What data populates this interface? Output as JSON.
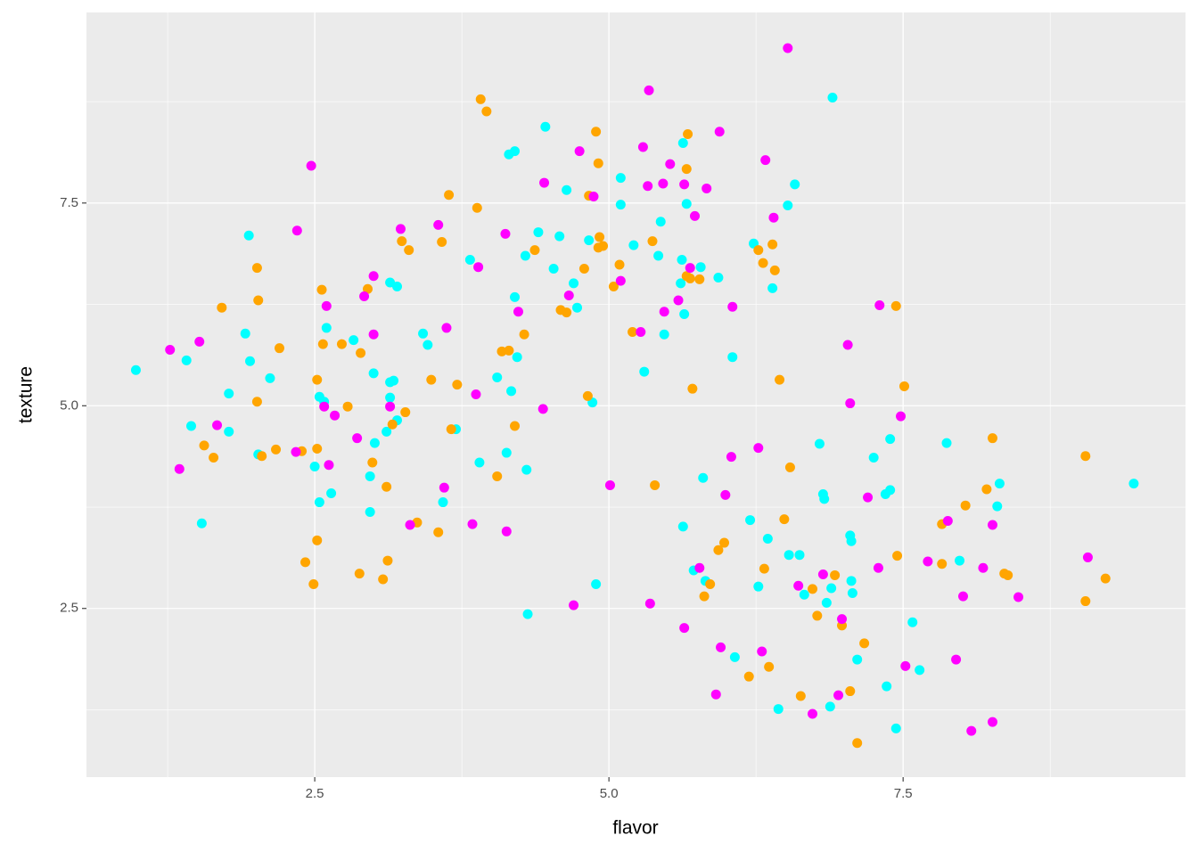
{
  "chart_data": {
    "type": "scatter",
    "x_label": "flavor",
    "y_label": "texture",
    "xlim": [
      0.56,
      9.9
    ],
    "ylim": [
      0.42,
      9.85
    ],
    "xticks": [
      2.5,
      {
        "value": 5,
        "label": "5.0"
      },
      7.5
    ],
    "yticks": [
      2.5,
      {
        "value": 5,
        "label": "5.0"
      },
      7.5
    ],
    "x_minor_grid": [
      1.25,
      3.75,
      6.25,
      8.75
    ],
    "y_minor_grid": [
      1.25,
      3.75,
      6.25,
      8.75
    ],
    "grid": true,
    "series": [
      {
        "color": "#00ffff",
        "x": [
          0.98,
          1.41,
          1.45,
          1.54,
          1.77,
          1.77,
          1.94,
          1.91,
          1.95,
          2.02,
          2.12,
          2.5,
          2.54,
          2.54,
          2.58,
          2.6,
          2.64,
          2.83,
          2.97,
          2.97,
          3.0,
          3.01,
          3.14,
          3.14,
          3.14,
          3.11,
          3.17,
          3.2,
          3.2,
          3.42,
          3.46,
          3.59,
          3.7,
          3.82,
          3.9,
          4.05,
          4.13,
          4.17,
          4.15,
          4.2,
          4.22,
          4.2,
          4.29,
          4.3,
          4.31,
          4.4,
          4.46,
          4.53,
          4.58,
          4.64,
          4.7,
          4.73,
          4.83,
          4.86,
          4.89,
          5.1,
          5.1,
          5.21,
          5.3,
          5.42,
          5.44,
          5.47,
          5.61,
          5.62,
          5.63,
          5.64,
          5.66,
          5.72,
          5.78,
          5.8,
          5.82,
          5.63,
          5.93,
          6.05,
          6.07,
          6.2,
          6.23,
          6.27,
          6.35,
          6.39,
          6.44,
          6.53,
          6.52,
          6.58,
          6.62,
          6.66,
          6.79,
          6.83,
          6.82,
          6.85,
          6.88,
          6.89,
          6.9,
          7.05,
          7.06,
          7.06,
          7.07,
          7.11,
          7.25,
          7.35,
          7.36,
          7.39,
          7.39,
          7.44,
          7.58,
          7.64,
          7.87,
          7.98,
          8.3,
          8.32,
          9.46
        ],
        "y": [
          5.44,
          5.56,
          4.75,
          3.55,
          5.15,
          4.68,
          7.1,
          5.89,
          5.55,
          4.4,
          5.34,
          4.25,
          5.11,
          3.81,
          5.05,
          5.96,
          3.92,
          5.81,
          4.13,
          3.69,
          5.4,
          4.54,
          6.52,
          5.1,
          5.29,
          4.68,
          5.31,
          6.47,
          4.82,
          5.89,
          5.75,
          3.81,
          4.71,
          6.8,
          4.3,
          5.35,
          4.42,
          5.18,
          8.1,
          8.14,
          5.6,
          6.34,
          6.85,
          4.21,
          2.43,
          7.14,
          8.44,
          6.69,
          7.09,
          7.66,
          6.51,
          6.21,
          7.04,
          5.04,
          2.8,
          7.81,
          7.48,
          6.98,
          5.42,
          6.85,
          7.27,
          5.88,
          6.51,
          6.8,
          8.24,
          6.13,
          7.49,
          2.97,
          6.71,
          4.11,
          2.84,
          3.51,
          6.58,
          5.6,
          1.9,
          3.59,
          7.0,
          2.77,
          3.36,
          6.45,
          1.26,
          3.16,
          7.47,
          7.73,
          3.16,
          2.67,
          4.53,
          3.85,
          3.91,
          2.57,
          1.29,
          2.75,
          8.8,
          3.4,
          3.33,
          2.84,
          2.69,
          1.87,
          4.36,
          3.91,
          1.54,
          3.96,
          4.59,
          1.02,
          2.33,
          1.74,
          4.54,
          3.09,
          3.76,
          4.04,
          4.04
        ]
      },
      {
        "color": "#ffa500",
        "x": [
          1.56,
          1.64,
          1.71,
          2.01,
          2.02,
          2.01,
          2.05,
          2.17,
          2.2,
          2.39,
          2.42,
          2.52,
          2.52,
          2.49,
          2.52,
          2.56,
          2.57,
          2.73,
          2.78,
          2.88,
          2.89,
          2.95,
          2.99,
          3.08,
          3.11,
          3.12,
          3.16,
          3.24,
          3.27,
          3.3,
          3.37,
          3.49,
          3.55,
          3.58,
          3.64,
          3.66,
          3.71,
          3.88,
          3.91,
          3.96,
          4.05,
          4.09,
          4.15,
          4.2,
          4.28,
          4.37,
          4.59,
          4.64,
          4.79,
          4.82,
          4.83,
          4.89,
          4.91,
          4.91,
          4.92,
          4.95,
          5.04,
          5.09,
          5.2,
          5.37,
          5.39,
          5.67,
          5.66,
          5.66,
          5.69,
          5.77,
          5.71,
          5.81,
          5.86,
          5.93,
          5.98,
          6.19,
          6.27,
          6.31,
          6.32,
          6.36,
          6.39,
          6.41,
          6.45,
          6.49,
          6.54,
          6.63,
          6.73,
          6.77,
          6.92,
          6.98,
          7.05,
          7.11,
          7.17,
          7.44,
          7.45,
          7.51,
          7.83,
          7.83,
          8.03,
          8.21,
          8.26,
          8.36,
          8.39,
          9.05,
          9.05,
          9.22
        ],
        "y": [
          4.51,
          4.36,
          6.21,
          6.7,
          6.3,
          5.05,
          4.38,
          4.46,
          5.71,
          4.44,
          3.07,
          5.32,
          3.34,
          2.8,
          4.47,
          6.43,
          5.76,
          5.76,
          4.99,
          2.93,
          5.65,
          6.44,
          4.3,
          2.86,
          4.0,
          3.09,
          4.77,
          7.03,
          4.92,
          6.92,
          3.56,
          5.32,
          3.44,
          7.02,
          7.6,
          4.71,
          5.26,
          7.44,
          8.78,
          8.63,
          4.13,
          5.67,
          5.68,
          4.75,
          5.88,
          6.92,
          6.18,
          6.15,
          6.69,
          5.12,
          7.59,
          8.38,
          7.99,
          6.95,
          7.08,
          6.97,
          6.47,
          6.74,
          5.91,
          7.03,
          4.02,
          8.35,
          7.92,
          6.6,
          6.57,
          6.56,
          5.21,
          2.65,
          2.8,
          3.22,
          3.31,
          1.66,
          6.92,
          6.76,
          2.99,
          1.78,
          6.99,
          6.67,
          5.32,
          3.6,
          4.24,
          1.42,
          2.74,
          2.41,
          2.91,
          2.29,
          1.48,
          0.84,
          2.07,
          6.23,
          3.15,
          5.24,
          3.54,
          3.05,
          3.77,
          3.97,
          4.6,
          2.93,
          2.91,
          4.38,
          2.59,
          2.87
        ]
      },
      {
        "color": "#ff00ff",
        "x": [
          1.27,
          1.35,
          1.52,
          1.67,
          2.35,
          2.34,
          2.47,
          2.58,
          2.6,
          2.62,
          2.67,
          2.86,
          2.92,
          3.0,
          3.0,
          3.14,
          3.23,
          3.31,
          3.55,
          3.6,
          3.62,
          3.84,
          3.87,
          3.89,
          4.12,
          4.13,
          4.23,
          4.44,
          4.45,
          4.66,
          4.7,
          4.75,
          4.87,
          5.01,
          5.1,
          5.27,
          5.29,
          5.34,
          5.33,
          5.35,
          5.46,
          5.47,
          5.52,
          5.59,
          5.64,
          5.64,
          5.69,
          5.73,
          5.77,
          5.83,
          5.91,
          5.94,
          5.95,
          5.99,
          6.04,
          6.05,
          6.27,
          6.3,
          6.33,
          6.4,
          6.52,
          6.61,
          6.73,
          6.82,
          6.95,
          6.98,
          7.03,
          7.05,
          7.2,
          7.29,
          7.3,
          7.48,
          7.52,
          7.71,
          7.88,
          7.95,
          8.01,
          8.08,
          8.18,
          8.26,
          8.26,
          8.48,
          9.07
        ],
        "y": [
          5.69,
          4.22,
          5.79,
          4.76,
          7.16,
          4.43,
          7.96,
          4.99,
          6.23,
          4.27,
          4.88,
          4.6,
          6.35,
          6.6,
          5.88,
          4.99,
          7.18,
          3.53,
          7.23,
          3.99,
          5.96,
          3.54,
          5.14,
          6.71,
          7.12,
          3.45,
          6.16,
          4.96,
          7.75,
          6.36,
          2.54,
          8.14,
          7.58,
          4.02,
          6.54,
          5.91,
          8.19,
          8.89,
          7.71,
          2.56,
          7.74,
          6.16,
          7.98,
          6.3,
          2.26,
          7.73,
          6.7,
          7.34,
          3.0,
          7.68,
          1.44,
          8.38,
          2.02,
          3.9,
          4.37,
          6.22,
          4.48,
          1.97,
          8.03,
          7.32,
          9.41,
          2.78,
          1.2,
          2.92,
          1.43,
          2.37,
          5.75,
          5.03,
          3.87,
          3.0,
          6.24,
          4.87,
          1.79,
          3.08,
          3.58,
          1.87,
          2.65,
          0.99,
          3.0,
          3.53,
          1.1,
          2.64,
          3.13
        ]
      }
    ]
  }
}
